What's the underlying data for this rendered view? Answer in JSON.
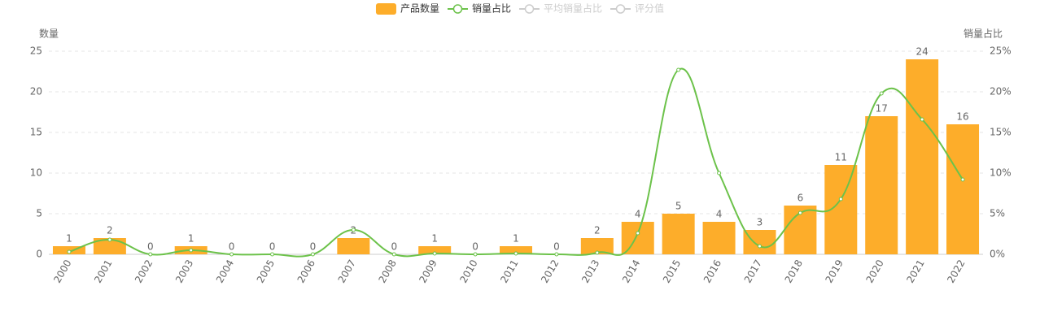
{
  "chart_data": {
    "type": "bar-line",
    "y_axis_label": "数量",
    "y2_axis_label": "销量占比",
    "categories": [
      "2000",
      "2001",
      "2002",
      "2003",
      "2004",
      "2005",
      "2006",
      "2007",
      "2008",
      "2009",
      "2010",
      "2011",
      "2012",
      "2013",
      "2014",
      "2015",
      "2016",
      "2017",
      "2018",
      "2019",
      "2020",
      "2021",
      "2022"
    ],
    "series": [
      {
        "name": "产品数量",
        "type": "bar",
        "color": "#fdad2a",
        "values": [
          1,
          2,
          0,
          1,
          0,
          0,
          0,
          2,
          0,
          1,
          0,
          1,
          0,
          2,
          4,
          5,
          4,
          3,
          6,
          11,
          17,
          24,
          16
        ]
      },
      {
        "name": "销量占比",
        "type": "line",
        "axis": "y2",
        "color": "#6cc24a",
        "values": [
          0.3,
          1.8,
          0,
          0.5,
          0,
          0,
          0,
          3.0,
          0,
          0.1,
          0,
          0.1,
          0,
          0.2,
          2.6,
          22.7,
          10.0,
          1.0,
          5.1,
          6.8,
          19.8,
          16.6,
          9.2
        ]
      },
      {
        "name": "平均销量占比",
        "type": "line",
        "color": "#cccccc",
        "visible": false
      },
      {
        "name": "评分值",
        "type": "line",
        "color": "#cccccc",
        "visible": false
      }
    ],
    "ylim": [
      0,
      25
    ],
    "yticks": [
      0,
      5,
      10,
      15,
      20,
      25
    ],
    "y2lim": [
      0,
      25
    ],
    "y2ticks": [
      {
        "value": 0,
        "label": "0%"
      },
      {
        "value": 5,
        "label": "5%"
      },
      {
        "value": 10,
        "label": "10%"
      },
      {
        "value": 15,
        "label": "15%"
      },
      {
        "value": 20,
        "label": "20%"
      },
      {
        "value": 25,
        "label": "25%"
      }
    ],
    "grid": true
  }
}
